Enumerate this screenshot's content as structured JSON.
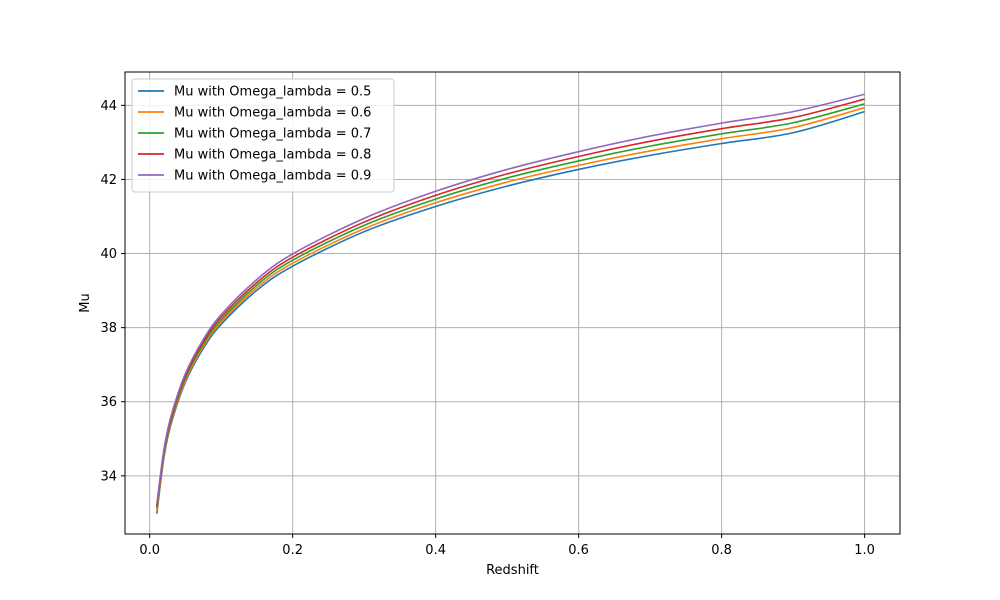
{
  "chart_data": {
    "type": "line",
    "title": "",
    "xlabel": "Redshift",
    "ylabel": "Mu",
    "xlim": [
      -0.0345,
      1.0495
    ],
    "ylim": [
      32.43,
      44.9
    ],
    "x_ticks": [
      0.0,
      0.2,
      0.4,
      0.6,
      0.8,
      1.0
    ],
    "x_tick_labels": [
      "0.0",
      "0.2",
      "0.4",
      "0.6",
      "0.8",
      "1.0"
    ],
    "y_ticks": [
      34,
      36,
      38,
      40,
      42,
      44
    ],
    "y_tick_labels": [
      "34",
      "36",
      "38",
      "40",
      "42",
      "44"
    ],
    "grid": true,
    "legend_position": "top-left",
    "x": [
      0.01,
      0.02,
      0.03,
      0.05,
      0.075,
      0.1,
      0.15,
      0.2,
      0.3,
      0.4,
      0.5,
      0.6,
      0.7,
      0.8,
      0.9,
      1.0
    ],
    "series": [
      {
        "name": "Mu with Omega_lambda = 0.5",
        "color": "#1f77b4",
        "values": [
          32.98,
          34.5,
          35.4,
          36.53,
          37.44,
          38.09,
          39.01,
          39.66,
          40.59,
          41.27,
          41.82,
          42.27,
          42.65,
          42.97,
          43.26,
          43.83
        ]
      },
      {
        "name": "Mu with Omega_lambda = 0.6",
        "color": "#ff7f0e",
        "values": [
          33.05,
          34.55,
          35.45,
          36.58,
          37.5,
          38.15,
          39.08,
          39.74,
          40.67,
          41.37,
          41.93,
          42.38,
          42.77,
          43.1,
          43.4,
          43.94
        ]
      },
      {
        "name": "Mu with Omega_lambda = 0.7",
        "color": "#2ca02c",
        "values": [
          33.12,
          34.6,
          35.5,
          36.64,
          37.56,
          38.21,
          39.15,
          39.82,
          40.76,
          41.47,
          42.04,
          42.5,
          42.9,
          43.23,
          43.53,
          44.04
        ]
      },
      {
        "name": "Mu with Omega_lambda = 0.8",
        "color": "#d62728",
        "values": [
          33.18,
          34.66,
          35.56,
          36.7,
          37.62,
          38.28,
          39.22,
          39.9,
          40.85,
          41.57,
          42.15,
          42.62,
          43.03,
          43.37,
          43.67,
          44.17
        ]
      },
      {
        "name": "Mu with Omega_lambda = 0.9",
        "color": "#9467bd",
        "values": [
          33.24,
          34.72,
          35.62,
          36.76,
          37.68,
          38.35,
          39.3,
          39.99,
          40.95,
          41.68,
          42.27,
          42.75,
          43.17,
          43.52,
          43.83,
          44.3
        ]
      }
    ]
  }
}
